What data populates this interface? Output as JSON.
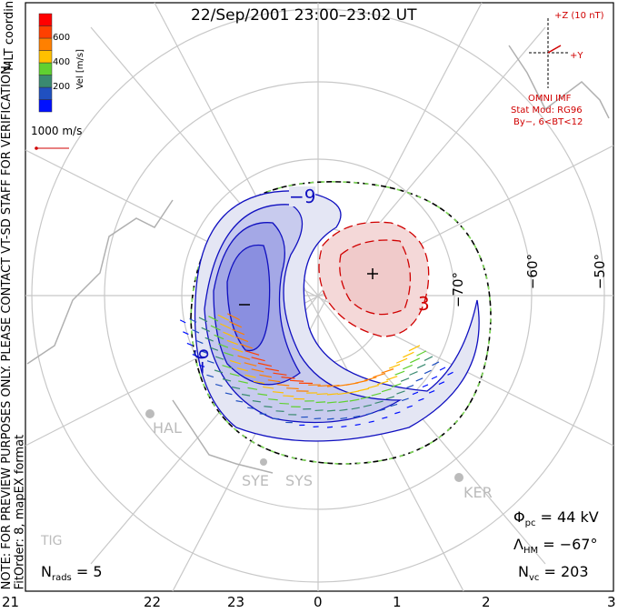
{
  "title": "22/Sep/2001 23:00–23:02 UT",
  "coordinates": "MLT coordinates",
  "note": "NOTE: FOR PREVIEW PURPOSES ONLY. PLEASE CONTACT VT-SD STAFF FOR VERIFICATION.",
  "fit_info": "FitOrder: 8, mapEX format",
  "colorbar": {
    "label": "Vel [m/s]",
    "ticks": [
      "200",
      "400",
      "600"
    ],
    "colors": [
      "#0010ff",
      "#2050c0",
      "#3a8a70",
      "#60d030",
      "#ffc000",
      "#ff8000",
      "#ff4000",
      "#ff0000"
    ]
  },
  "reference_vector": "1000 m/s",
  "imf": {
    "z_label": "+Z (10 nT)",
    "y_label": "+Y",
    "source": "OMNI IMF",
    "model": "Stat Mod: RG96",
    "condition": "By−, 6<BT<12"
  },
  "latitude_labels": [
    "−70°",
    "−60°",
    "−50°"
  ],
  "mlt_labels": [
    "21",
    "22",
    "23",
    "0",
    "1",
    "2",
    "3"
  ],
  "contour_labels": [
    "−9",
    "−6",
    "3"
  ],
  "stations": [
    "HAL",
    "SYE",
    "SYS",
    "KER",
    "TIG"
  ],
  "stats": {
    "phi_pc": "44 kV",
    "lambda_hm": "−67°",
    "n_vc": "203",
    "n_rads": "5"
  }
}
